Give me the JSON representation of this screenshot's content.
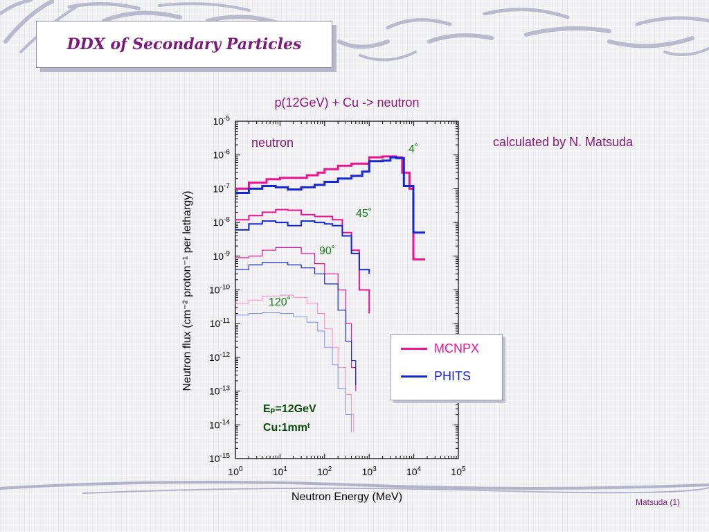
{
  "slide": {
    "title": "DDX of Secondary Particles",
    "credit": "calculated by N. Matsuda",
    "footer": "Matsuda (1)"
  },
  "chart_data": {
    "type": "line",
    "title": "p(12GeV) + Cu -> neutron",
    "xlabel": "Neutron Energy (MeV)",
    "ylabel": "Neutron flux (cm⁻² proton⁻¹ per lethargy)",
    "xscale": "log",
    "yscale": "log",
    "xlim": [
      1,
      100000
    ],
    "ylim": [
      1e-15,
      1e-05
    ],
    "x_ticks": [
      {
        "base": "10",
        "exp": "0"
      },
      {
        "base": "10",
        "exp": "1"
      },
      {
        "base": "10",
        "exp": "2"
      },
      {
        "base": "10",
        "exp": "3"
      },
      {
        "base": "10",
        "exp": "4"
      },
      {
        "base": "10",
        "exp": "5"
      }
    ],
    "y_ticks": [
      {
        "base": "10",
        "exp": "-5"
      },
      {
        "base": "10",
        "exp": "-6"
      },
      {
        "base": "10",
        "exp": "-7"
      },
      {
        "base": "10",
        "exp": "-8"
      },
      {
        "base": "10",
        "exp": "-9"
      },
      {
        "base": "10",
        "exp": "-10"
      },
      {
        "base": "10",
        "exp": "-11"
      },
      {
        "base": "10",
        "exp": "-12"
      },
      {
        "base": "10",
        "exp": "-13"
      },
      {
        "base": "10",
        "exp": "-14"
      },
      {
        "base": "10",
        "exp": "-15"
      }
    ],
    "annotations": {
      "particle": "neutron",
      "angle_4": "4˚",
      "angle_45": "45˚",
      "angle_90": "90˚",
      "angle_120": "120˚",
      "ep_label": "Eₚ=12GeV",
      "target_label": "Cu:1mmᵗ"
    },
    "legend": {
      "position": "bottom-right",
      "entries": [
        {
          "name": "MCNPX",
          "color": "#ee1190"
        },
        {
          "name": "PHITS",
          "color": "#1428d2"
        }
      ]
    },
    "series": [
      {
        "name": "MCNPX",
        "angle": "4˚",
        "color": "#ee1190",
        "width": 3,
        "points": [
          [
            1,
            1e-07
          ],
          [
            2,
            1.5e-07
          ],
          [
            5,
            1.9e-07
          ],
          [
            10,
            2.1e-07
          ],
          [
            20,
            2.1e-07
          ],
          [
            40,
            2.5e-07
          ],
          [
            70,
            3e-07
          ],
          [
            100,
            3.8e-07
          ],
          [
            200,
            4.8e-07
          ],
          [
            400,
            5.5e-07
          ],
          [
            600,
            5.5e-07
          ],
          [
            1000,
            8.5e-07
          ],
          [
            2000,
            9e-07
          ],
          [
            3000,
            9e-07
          ],
          [
            4000,
            8.5e-07
          ],
          [
            5500,
            3e-07
          ],
          [
            8000,
            1e-07
          ],
          [
            9800,
            8e-10
          ],
          [
            18000,
            8e-10
          ]
        ]
      },
      {
        "name": "PHITS",
        "angle": "4˚",
        "color": "#1428d2",
        "width": 3,
        "points": [
          [
            1,
            7.5e-08
          ],
          [
            2,
            1e-07
          ],
          [
            4,
            1.2e-07
          ],
          [
            8,
            1.1e-07
          ],
          [
            15,
            9.5e-08
          ],
          [
            30,
            1.1e-07
          ],
          [
            60,
            1.3e-07
          ],
          [
            100,
            1.6e-07
          ],
          [
            200,
            2e-07
          ],
          [
            400,
            2.4e-07
          ],
          [
            700,
            3.2e-07
          ],
          [
            1000,
            6.5e-07
          ],
          [
            2000,
            6.8e-07
          ],
          [
            3000,
            8.5e-07
          ],
          [
            4000,
            8e-07
          ],
          [
            6000,
            1.2e-07
          ],
          [
            9800,
            5e-09
          ],
          [
            18000,
            5e-09
          ]
        ]
      },
      {
        "name": "MCNPX",
        "angle": "45˚",
        "color": "#ee1190",
        "width": 2,
        "points": [
          [
            1,
            1.2e-08
          ],
          [
            2,
            1.6e-08
          ],
          [
            4,
            2e-08
          ],
          [
            8,
            2.4e-08
          ],
          [
            15,
            2.3e-08
          ],
          [
            30,
            1.7e-08
          ],
          [
            60,
            1.5e-08
          ],
          [
            100,
            1.5e-08
          ],
          [
            150,
            1.2e-08
          ],
          [
            250,
            5e-09
          ],
          [
            400,
            1.5e-09
          ],
          [
            600,
            1e-10
          ],
          [
            1000,
            2e-11
          ]
        ]
      },
      {
        "name": "PHITS",
        "angle": "45˚",
        "color": "#1428d2",
        "width": 2,
        "points": [
          [
            1,
            6e-09
          ],
          [
            2,
            9e-09
          ],
          [
            4,
            1.1e-08
          ],
          [
            8,
            1e-08
          ],
          [
            15,
            8e-09
          ],
          [
            30,
            1.1e-08
          ],
          [
            60,
            1e-08
          ],
          [
            100,
            9e-09
          ],
          [
            150,
            8e-09
          ],
          [
            250,
            4e-09
          ],
          [
            400,
            1.2e-09
          ],
          [
            600,
            4e-10
          ],
          [
            1000,
            3e-10
          ]
        ]
      },
      {
        "name": "MCNPX",
        "angle": "90˚",
        "color": "#ee1190",
        "width": 1.2,
        "points": [
          [
            1,
            9e-10
          ],
          [
            2,
            1e-09
          ],
          [
            4,
            1.5e-09
          ],
          [
            8,
            1.8e-09
          ],
          [
            15,
            1.8e-09
          ],
          [
            30,
            1.2e-09
          ],
          [
            60,
            6e-10
          ],
          [
            100,
            3e-10
          ],
          [
            200,
            1e-10
          ],
          [
            300,
            1e-11
          ],
          [
            400,
            5e-13
          ],
          [
            500,
            1e-13
          ]
        ]
      },
      {
        "name": "PHITS",
        "angle": "90˚",
        "color": "#1428d2",
        "width": 1.2,
        "points": [
          [
            1,
            4e-10
          ],
          [
            2,
            5.5e-10
          ],
          [
            4,
            6.5e-10
          ],
          [
            8,
            6.5e-10
          ],
          [
            15,
            5.5e-10
          ],
          [
            30,
            4.5e-10
          ],
          [
            60,
            3e-10
          ],
          [
            100,
            1.5e-10
          ],
          [
            200,
            2.5e-11
          ],
          [
            300,
            3e-12
          ],
          [
            400,
            8e-13
          ],
          [
            500,
            1.5e-13
          ]
        ]
      },
      {
        "name": "MCNPX",
        "angle": "120˚",
        "color": "#ff7fbf",
        "width": 0.9,
        "points": [
          [
            1,
            4e-11
          ],
          [
            2,
            5e-11
          ],
          [
            4,
            6.5e-11
          ],
          [
            10,
            7e-11
          ],
          [
            20,
            6e-11
          ],
          [
            40,
            4e-11
          ],
          [
            70,
            2e-11
          ],
          [
            100,
            7e-12
          ],
          [
            150,
            2e-12
          ],
          [
            200,
            5e-13
          ],
          [
            300,
            8e-14
          ],
          [
            400,
            2e-14
          ],
          [
            450,
            6e-15
          ]
        ]
      },
      {
        "name": "PHITS",
        "angle": "120˚",
        "color": "#7a86ee",
        "width": 0.9,
        "points": [
          [
            1,
            1.8e-11
          ],
          [
            2,
            2e-11
          ],
          [
            4,
            2.1e-11
          ],
          [
            10,
            2e-11
          ],
          [
            20,
            1.6e-11
          ],
          [
            40,
            1.1e-11
          ],
          [
            70,
            6e-12
          ],
          [
            100,
            2e-12
          ],
          [
            150,
            6e-13
          ],
          [
            200,
            1.2e-13
          ],
          [
            300,
            2e-14
          ],
          [
            400,
            6e-15
          ]
        ]
      }
    ]
  }
}
